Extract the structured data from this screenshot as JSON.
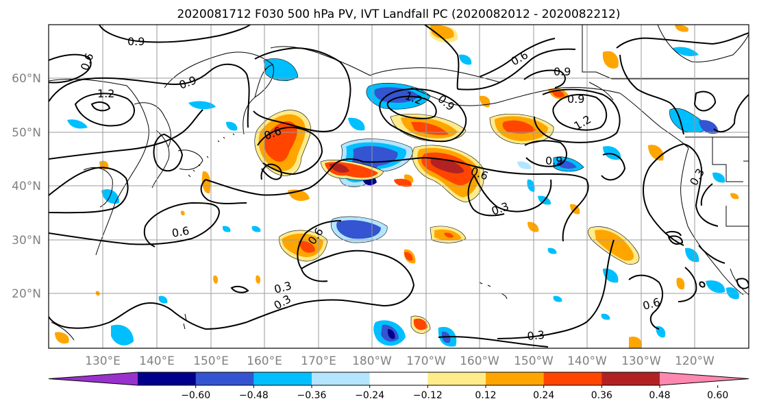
{
  "title": "2020081712 F030 500 hPa PV, IVT Landfall PC (2020082012 - 2020082212)",
  "map": {
    "lon_labels": [
      "130°E",
      "140°E",
      "150°E",
      "160°E",
      "170°E",
      "180°W",
      "170°W",
      "160°W",
      "150°W",
      "140°W",
      "130°W",
      "120°W"
    ],
    "lat_labels": [
      "60°N",
      "50°N",
      "40°N",
      "30°N",
      "20°N"
    ],
    "contour_labels": [
      "0.9",
      "0.6",
      "1.2",
      "0.9",
      "0.6",
      "1.2",
      "0.9",
      "0.6",
      "0.9",
      "1.2",
      "0.9",
      "0.6",
      "0.3",
      "0.6",
      "0.6",
      "0.3",
      "0.3",
      "0.6",
      "0.3",
      "0.3",
      "0.9"
    ]
  },
  "colorbar": {
    "ticks": [
      "−0.60",
      "−0.48",
      "−0.36",
      "−0.24",
      "−0.12",
      "0.12",
      "0.24",
      "0.36",
      "0.48",
      "0.60"
    ],
    "colors": [
      "#9932cc",
      "#00008b",
      "#3454d1",
      "#00bfff",
      "#b3e5ff",
      "#ffffff",
      "#ffeb8a",
      "#ffa500",
      "#ff4500",
      "#b22222",
      "#ff88b0"
    ]
  },
  "colors": {
    "neg_strong": "#3454d1",
    "neg_mid": "#00bfff",
    "neg_light": "#b3e5ff",
    "neg_deep": "#00008b",
    "pos_light": "#ffeb8a",
    "pos_mid": "#ffa500",
    "pos_strong": "#ff4500",
    "pos_deep": "#b22222"
  }
}
